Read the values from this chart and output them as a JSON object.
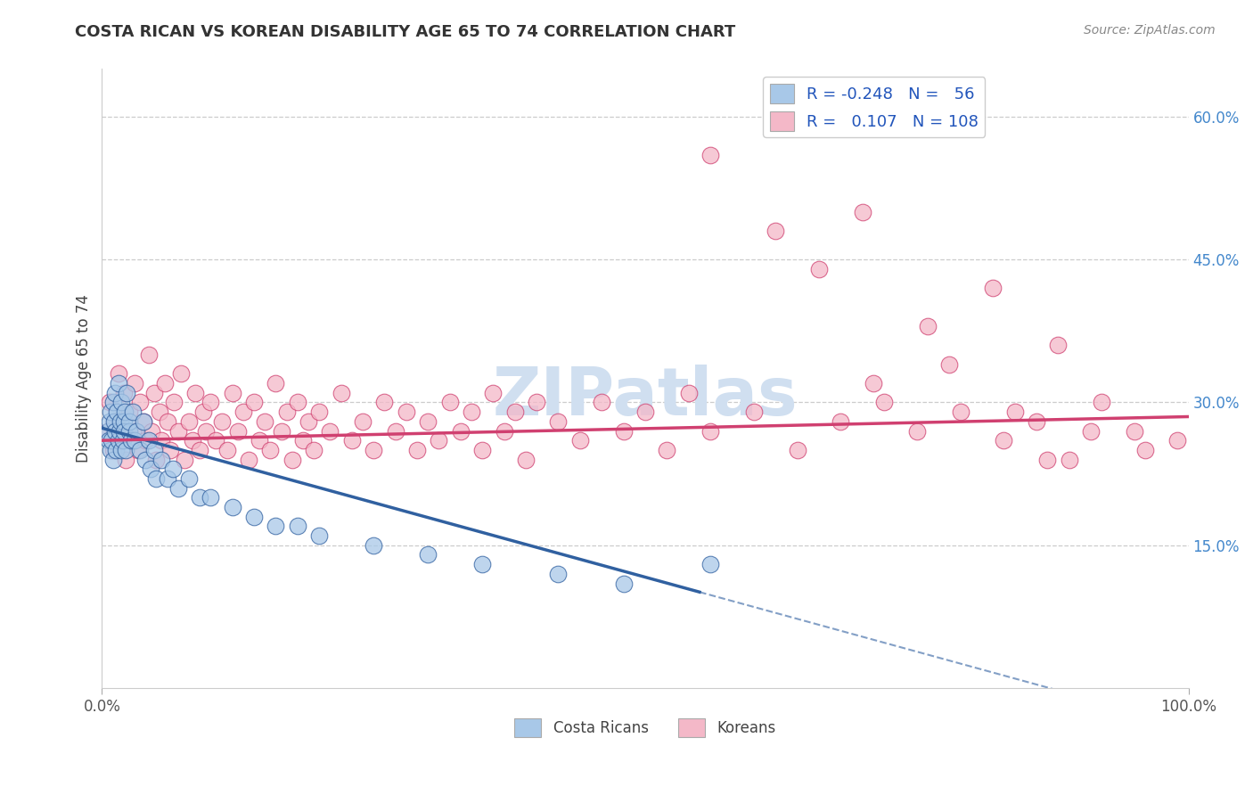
{
  "title": "COSTA RICAN VS KOREAN DISABILITY AGE 65 TO 74 CORRELATION CHART",
  "source": "Source: ZipAtlas.com",
  "ylabel": "Disability Age 65 to 74",
  "xlim": [
    0.0,
    1.0
  ],
  "ylim": [
    0.0,
    0.65
  ],
  "xticklabels": [
    "0.0%",
    "100.0%"
  ],
  "yticklabels_right": [
    "15.0%",
    "30.0%",
    "45.0%",
    "60.0%"
  ],
  "yticklabels_right_vals": [
    0.15,
    0.3,
    0.45,
    0.6
  ],
  "legend_R1": "-0.248",
  "legend_N1": "56",
  "legend_R2": "0.107",
  "legend_N2": "108",
  "color_blue": "#a8c8e8",
  "color_pink": "#f4b8c8",
  "color_blue_line": "#3060a0",
  "color_pink_line": "#d04070",
  "watermark_color": "#d0dff0",
  "grid_color": "#cccccc",
  "background_color": "#ffffff",
  "cr_x": [
    0.005,
    0.006,
    0.007,
    0.008,
    0.008,
    0.009,
    0.01,
    0.01,
    0.011,
    0.012,
    0.012,
    0.013,
    0.014,
    0.015,
    0.015,
    0.016,
    0.017,
    0.018,
    0.018,
    0.019,
    0.02,
    0.02,
    0.021,
    0.022,
    0.023,
    0.025,
    0.025,
    0.027,
    0.028,
    0.03,
    0.032,
    0.035,
    0.038,
    0.04,
    0.043,
    0.045,
    0.048,
    0.05,
    0.055,
    0.06,
    0.065,
    0.07,
    0.08,
    0.09,
    0.1,
    0.12,
    0.14,
    0.16,
    0.18,
    0.2,
    0.25,
    0.3,
    0.35,
    0.42,
    0.48,
    0.56
  ],
  "cr_y": [
    0.27,
    0.26,
    0.28,
    0.25,
    0.29,
    0.26,
    0.3,
    0.24,
    0.28,
    0.27,
    0.31,
    0.25,
    0.29,
    0.26,
    0.32,
    0.27,
    0.28,
    0.25,
    0.3,
    0.26,
    0.28,
    0.27,
    0.29,
    0.25,
    0.31,
    0.27,
    0.28,
    0.26,
    0.29,
    0.26,
    0.27,
    0.25,
    0.28,
    0.24,
    0.26,
    0.23,
    0.25,
    0.22,
    0.24,
    0.22,
    0.23,
    0.21,
    0.22,
    0.2,
    0.2,
    0.19,
    0.18,
    0.17,
    0.17,
    0.16,
    0.15,
    0.14,
    0.13,
    0.12,
    0.11,
    0.13
  ],
  "kr_x": [
    0.005,
    0.007,
    0.01,
    0.012,
    0.015,
    0.018,
    0.02,
    0.022,
    0.025,
    0.028,
    0.03,
    0.033,
    0.035,
    0.038,
    0.04,
    0.043,
    0.046,
    0.048,
    0.05,
    0.053,
    0.055,
    0.058,
    0.06,
    0.063,
    0.066,
    0.07,
    0.073,
    0.076,
    0.08,
    0.083,
    0.086,
    0.09,
    0.093,
    0.096,
    0.1,
    0.105,
    0.11,
    0.115,
    0.12,
    0.125,
    0.13,
    0.135,
    0.14,
    0.145,
    0.15,
    0.155,
    0.16,
    0.165,
    0.17,
    0.175,
    0.18,
    0.185,
    0.19,
    0.195,
    0.2,
    0.21,
    0.22,
    0.23,
    0.24,
    0.25,
    0.26,
    0.27,
    0.28,
    0.29,
    0.3,
    0.31,
    0.32,
    0.33,
    0.34,
    0.35,
    0.36,
    0.37,
    0.38,
    0.39,
    0.4,
    0.42,
    0.44,
    0.46,
    0.48,
    0.5,
    0.52,
    0.54,
    0.56,
    0.6,
    0.64,
    0.68,
    0.72,
    0.75,
    0.79,
    0.83,
    0.86,
    0.89,
    0.92,
    0.95,
    0.7,
    0.76,
    0.82,
    0.88,
    0.56,
    0.62,
    0.66,
    0.71,
    0.78,
    0.84,
    0.87,
    0.91,
    0.96,
    0.99
  ],
  "kr_y": [
    0.27,
    0.3,
    0.25,
    0.28,
    0.33,
    0.26,
    0.31,
    0.24,
    0.29,
    0.27,
    0.32,
    0.25,
    0.3,
    0.28,
    0.26,
    0.35,
    0.27,
    0.31,
    0.24,
    0.29,
    0.26,
    0.32,
    0.28,
    0.25,
    0.3,
    0.27,
    0.33,
    0.24,
    0.28,
    0.26,
    0.31,
    0.25,
    0.29,
    0.27,
    0.3,
    0.26,
    0.28,
    0.25,
    0.31,
    0.27,
    0.29,
    0.24,
    0.3,
    0.26,
    0.28,
    0.25,
    0.32,
    0.27,
    0.29,
    0.24,
    0.3,
    0.26,
    0.28,
    0.25,
    0.29,
    0.27,
    0.31,
    0.26,
    0.28,
    0.25,
    0.3,
    0.27,
    0.29,
    0.25,
    0.28,
    0.26,
    0.3,
    0.27,
    0.29,
    0.25,
    0.31,
    0.27,
    0.29,
    0.24,
    0.3,
    0.28,
    0.26,
    0.3,
    0.27,
    0.29,
    0.25,
    0.31,
    0.27,
    0.29,
    0.25,
    0.28,
    0.3,
    0.27,
    0.29,
    0.26,
    0.28,
    0.24,
    0.3,
    0.27,
    0.5,
    0.38,
    0.42,
    0.36,
    0.56,
    0.48,
    0.44,
    0.32,
    0.34,
    0.29,
    0.24,
    0.27,
    0.25,
    0.26
  ]
}
